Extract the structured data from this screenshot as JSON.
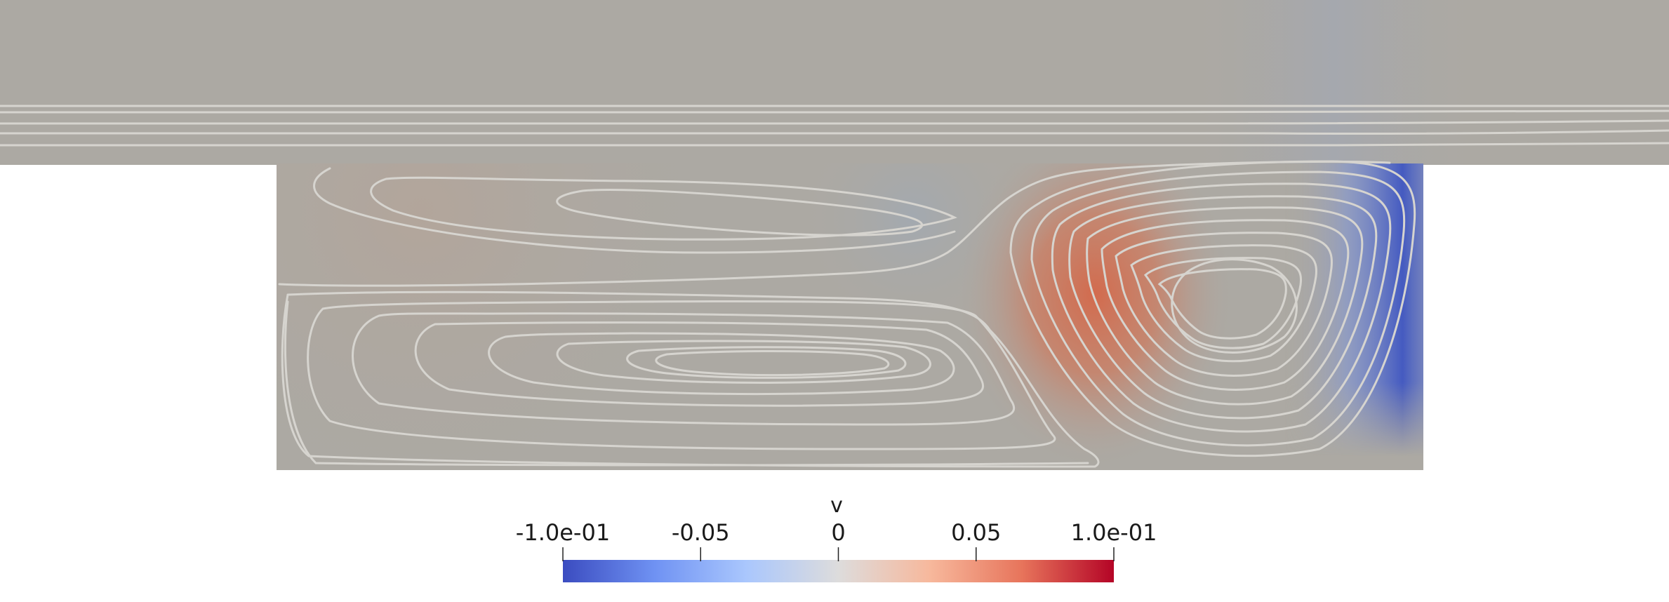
{
  "colorbar": {
    "variable": "v",
    "ticks": [
      {
        "value": -0.1,
        "label": "-1.0e-01"
      },
      {
        "value": -0.05,
        "label": "-0.05"
      },
      {
        "value": 0,
        "label": "0"
      },
      {
        "value": 0.05,
        "label": "0.05"
      },
      {
        "value": 0.1,
        "label": "1.0e-01"
      }
    ],
    "range": [
      -0.1,
      0.1
    ],
    "colors": [
      "#3b4cc0",
      "#6f92f3",
      "#aac7fd",
      "#dddcdc",
      "#f7b89c",
      "#e7745b",
      "#b40426"
    ]
  },
  "field": {
    "background_color": "#aca9a3",
    "streamline_color": "#d6d4cf"
  }
}
